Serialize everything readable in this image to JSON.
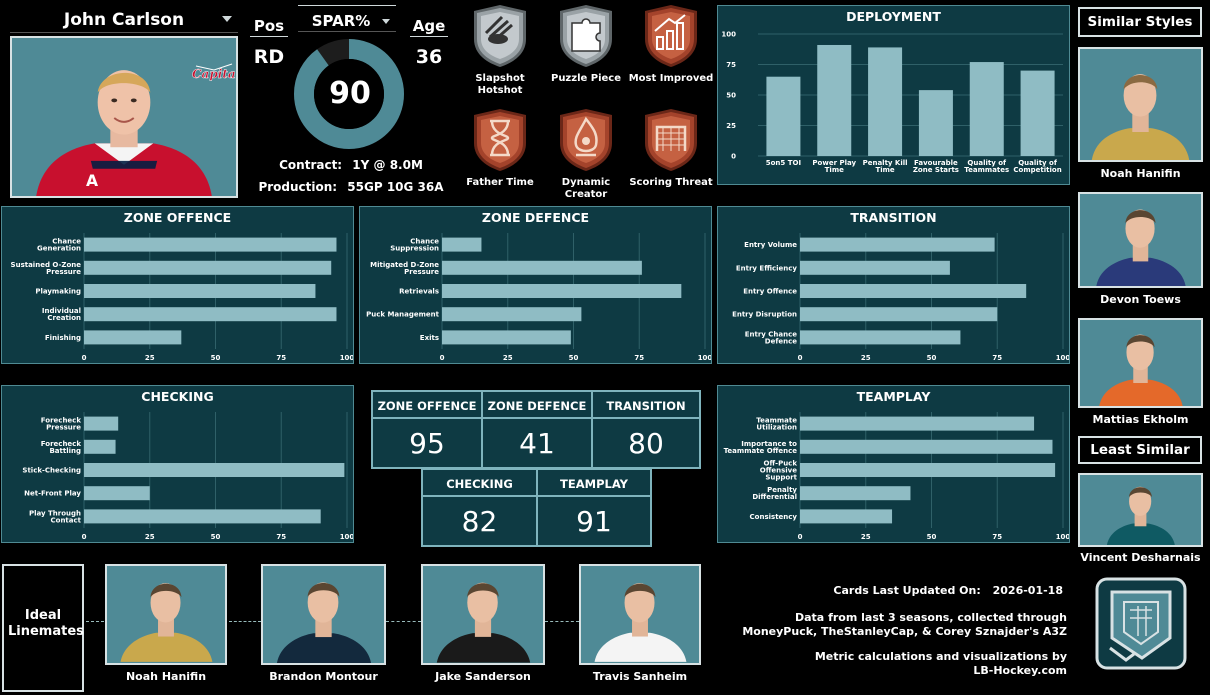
{
  "player": {
    "name": "John Carlson",
    "pos_label": "Pos",
    "pos": "RD",
    "spar_label": "SPAR%",
    "spar": "90",
    "spar_value": 90,
    "age_label": "Age",
    "age": "36",
    "contract_label": "Contract:",
    "contract": "1Y @ 8.0M",
    "production_label": "Production:",
    "production": "55GP 10G 36A",
    "team_logo": "capitals-logo"
  },
  "badges": [
    {
      "label": "Slapshot Hotshot",
      "icon": "puck-fire-icon",
      "tier": "silver"
    },
    {
      "label": "Puzzle Piece",
      "icon": "puzzle-icon",
      "tier": "silver"
    },
    {
      "label": "Most Improved",
      "icon": "bar-chart-up-icon",
      "tier": "bronze"
    },
    {
      "label": "Father Time",
      "icon": "hourglass-icon",
      "tier": "bronze"
    },
    {
      "label": "Dynamic Creator",
      "icon": "flame-player-icon",
      "tier": "bronze"
    },
    {
      "label": "Scoring Threat",
      "icon": "goal-net-icon",
      "tier": "bronze"
    }
  ],
  "colors": {
    "panel_bg": "#0e3a43",
    "bar": "#8fbcc4",
    "ring": "#4f8a96",
    "silver": "#c9ced1",
    "bronze": "#b5583d"
  },
  "chart_data": [
    {
      "id": "deployment",
      "type": "bar",
      "title": "DEPLOYMENT",
      "categories": [
        "5on5 TOI",
        "Power Play Time",
        "Penalty Kill Time",
        "Favourable Zone Starts",
        "Quality of Teammates",
        "Quality of Competition"
      ],
      "values": [
        65,
        91,
        89,
        54,
        77,
        70
      ],
      "ylim": [
        0,
        100
      ],
      "yticks": [
        0,
        25,
        50,
        75,
        100
      ]
    },
    {
      "id": "zone_offence",
      "type": "bar",
      "orientation": "horizontal",
      "title": "ZONE OFFENCE",
      "categories": [
        "Chance Generation",
        "Sustained O-Zone Pressure",
        "Playmaking",
        "Individual Creation",
        "Finishing"
      ],
      "values": [
        96,
        94,
        88,
        96,
        37
      ],
      "xlim": [
        0,
        100
      ],
      "xticks": [
        0,
        25,
        50,
        75,
        100
      ]
    },
    {
      "id": "zone_defence",
      "type": "bar",
      "orientation": "horizontal",
      "title": "ZONE DEFENCE",
      "categories": [
        "Chance Suppression",
        "Mitigated D-Zone Pressure",
        "Retrievals",
        "Puck Management",
        "Exits"
      ],
      "values": [
        15,
        76,
        91,
        53,
        49
      ],
      "xlim": [
        0,
        100
      ],
      "xticks": [
        0,
        25,
        50,
        75,
        100
      ]
    },
    {
      "id": "transition",
      "type": "bar",
      "orientation": "horizontal",
      "title": "TRANSITION",
      "categories": [
        "Entry Volume",
        "Entry Efficiency",
        "Entry Offence",
        "Entry Disruption",
        "Entry Chance Defence"
      ],
      "values": [
        74,
        57,
        86,
        75,
        61
      ],
      "xlim": [
        0,
        100
      ],
      "xticks": [
        0,
        25,
        50,
        75,
        100
      ]
    },
    {
      "id": "checking",
      "type": "bar",
      "orientation": "horizontal",
      "title": "CHECKING",
      "categories": [
        "Forecheck Pressure",
        "Forecheck Battling",
        "Stick-Checking",
        "Net-Front Play",
        "Play Through Contact"
      ],
      "values": [
        13,
        12,
        99,
        25,
        90
      ],
      "xlim": [
        0,
        100
      ],
      "xticks": [
        0,
        25,
        50,
        75,
        100
      ]
    },
    {
      "id": "teamplay",
      "type": "bar",
      "orientation": "horizontal",
      "title": "TEAMPLAY",
      "categories": [
        "Teammate Utilization",
        "Importance to Teammate Offence",
        "Off-Puck Offensive Support",
        "Penalty Differential",
        "Consistency"
      ],
      "values": [
        89,
        96,
        97,
        42,
        35
      ],
      "xlim": [
        0,
        100
      ],
      "xticks": [
        0,
        25,
        50,
        75,
        100
      ]
    }
  ],
  "scores": [
    {
      "label": "ZONE OFFENCE",
      "value": "95"
    },
    {
      "label": "ZONE DEFENCE",
      "value": "41"
    },
    {
      "label": "TRANSITION",
      "value": "80"
    },
    {
      "label": "CHECKING",
      "value": "82"
    },
    {
      "label": "TEAMPLAY",
      "value": "91"
    }
  ],
  "similar": {
    "title": "Similar Styles",
    "players": [
      {
        "name": "Noah Hanifin",
        "jersey": "#c9a84c"
      },
      {
        "name": "Devon Toews",
        "jersey": "#2a3a7a"
      },
      {
        "name": "Mattias Ekholm",
        "jersey": "#e4692a"
      }
    ],
    "least_title": "Least Similar",
    "least": {
      "name": "Vincent Desharnais",
      "jersey": "#0f5a63"
    }
  },
  "linemates": {
    "title": "Ideal Linemates",
    "players": [
      {
        "name": "Noah Hanifin",
        "jersey": "#c9a84c"
      },
      {
        "name": "Brandon Montour",
        "jersey": "#13293d"
      },
      {
        "name": "Jake Sanderson",
        "jersey": "#1a1a1a"
      },
      {
        "name": "Travis Sanheim",
        "jersey": "#f4f4f4"
      }
    ]
  },
  "footer": {
    "updated_label": "Cards Last Updated On:",
    "updated": "2026-01-18",
    "source_1": "Data from last 3 seasons, collected through",
    "source_2": "MoneyPuck, TheStanleyCap, & Corey Sznajder's A3Z",
    "credit_1": "Metric calculations and visualizations by",
    "credit_2": "LB-Hockey.com",
    "logo": "lb-hockey-logo"
  }
}
